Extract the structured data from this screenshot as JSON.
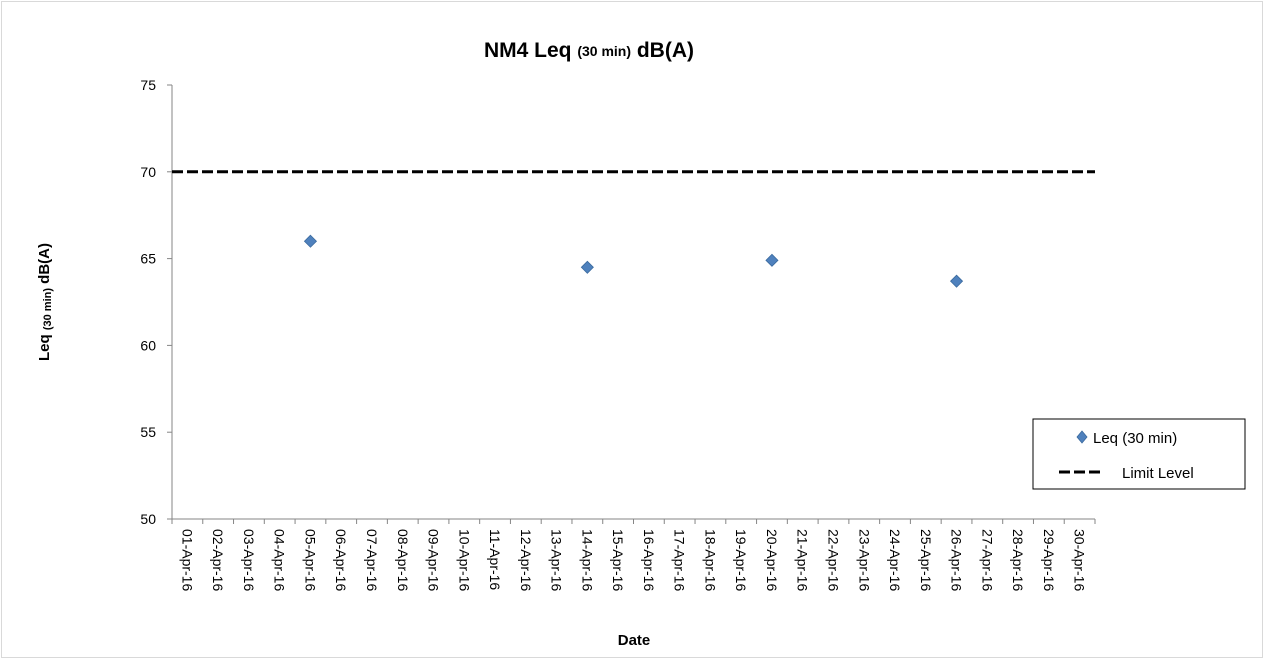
{
  "chart_data": {
    "type": "scatter",
    "title": {
      "main_prefix": "NM4 Leq ",
      "sub": "(30 min)",
      "main_suffix": " dB(A)"
    },
    "ylabel": {
      "prefix": "Leq ",
      "sub": "(30 min)",
      "suffix": " dB(A)"
    },
    "xlabel": "Date",
    "ylim": [
      50,
      75
    ],
    "yticks": [
      50,
      55,
      60,
      65,
      70,
      75
    ],
    "x_categories": [
      "01-Apr-16",
      "02-Apr-16",
      "03-Apr-16",
      "04-Apr-16",
      "05-Apr-16",
      "06-Apr-16",
      "07-Apr-16",
      "08-Apr-16",
      "09-Apr-16",
      "10-Apr-16",
      "11-Apr-16",
      "12-Apr-16",
      "13-Apr-16",
      "14-Apr-16",
      "15-Apr-16",
      "16-Apr-16",
      "17-Apr-16",
      "18-Apr-16",
      "19-Apr-16",
      "20-Apr-16",
      "21-Apr-16",
      "22-Apr-16",
      "23-Apr-16",
      "24-Apr-16",
      "25-Apr-16",
      "26-Apr-16",
      "27-Apr-16",
      "28-Apr-16",
      "29-Apr-16",
      "30-Apr-16"
    ],
    "series": [
      {
        "name": "Leq (30 min)",
        "marker": "diamond",
        "color": "#4f81bd",
        "points": [
          {
            "x": "05-Apr-16",
            "y": 66.0
          },
          {
            "x": "14-Apr-16",
            "y": 64.5
          },
          {
            "x": "20-Apr-16",
            "y": 64.9
          },
          {
            "x": "26-Apr-16",
            "y": 63.7
          }
        ]
      },
      {
        "name": "Limit Level",
        "style": "dashed",
        "color": "#000000",
        "y": 70
      }
    ],
    "grid": false,
    "legend_position": "right"
  }
}
